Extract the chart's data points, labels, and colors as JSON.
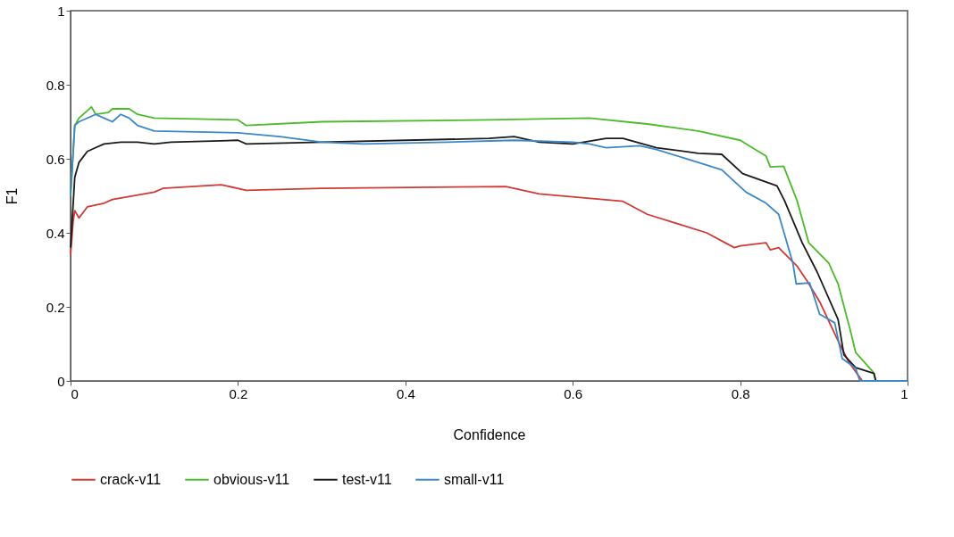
{
  "chart_data": {
    "type": "line",
    "xlabel": "Confidence",
    "ylabel": "F1",
    "xlim": [
      0,
      1
    ],
    "ylim": [
      0,
      1
    ],
    "xticks": [
      0,
      0.2,
      0.4,
      0.6,
      0.8,
      1
    ],
    "yticks": [
      0,
      0.2,
      0.4,
      0.6,
      0.8,
      1
    ],
    "grid": false,
    "legend": "bottom",
    "marker": "none",
    "line_style": "solid",
    "series": [
      {
        "name": "crack-v11",
        "color": "#d03a34",
        "x": [
          0,
          0.003,
          0.005,
          0.01,
          0.015,
          0.02,
          0.04,
          0.05,
          0.1,
          0.11,
          0.18,
          0.21,
          0.3,
          0.52,
          0.56,
          0.66,
          0.689,
          0.76,
          0.793,
          0.8,
          0.831,
          0.836,
          0.846,
          0.868,
          0.88,
          0.895,
          0.917,
          0.93,
          0.946,
          1
        ],
        "values": [
          0.34,
          0.43,
          0.46,
          0.44,
          0.455,
          0.47,
          0.48,
          0.49,
          0.51,
          0.52,
          0.53,
          0.515,
          0.52,
          0.525,
          0.505,
          0.485,
          0.45,
          0.4,
          0.36,
          0.365,
          0.373,
          0.354,
          0.36,
          0.31,
          0.27,
          0.214,
          0.108,
          0.05,
          0,
          0
        ]
      },
      {
        "name": "obvious-v11",
        "color": "#4cbb2b",
        "x": [
          0,
          0.005,
          0.01,
          0.02,
          0.025,
          0.03,
          0.045,
          0.05,
          0.07,
          0.08,
          0.1,
          0.2,
          0.21,
          0.3,
          0.5,
          0.62,
          0.689,
          0.75,
          0.8,
          0.831,
          0.836,
          0.852,
          0.868,
          0.882,
          0.906,
          0.917,
          0.932,
          0.938,
          0.959,
          0.962,
          1
        ],
        "values": [
          0.5,
          0.69,
          0.71,
          0.73,
          0.74,
          0.72,
          0.725,
          0.735,
          0.735,
          0.72,
          0.71,
          0.705,
          0.69,
          0.7,
          0.705,
          0.71,
          0.694,
          0.675,
          0.65,
          0.607,
          0.578,
          0.58,
          0.487,
          0.373,
          0.318,
          0.262,
          0.133,
          0.077,
          0.024,
          0,
          0
        ]
      },
      {
        "name": "test-v11",
        "color": "#1a1a1a",
        "x": [
          0,
          0.005,
          0.01,
          0.02,
          0.03,
          0.04,
          0.06,
          0.08,
          0.1,
          0.12,
          0.2,
          0.21,
          0.3,
          0.5,
          0.53,
          0.56,
          0.6,
          0.64,
          0.66,
          0.7,
          0.75,
          0.778,
          0.803,
          0.844,
          0.853,
          0.874,
          0.892,
          0.917,
          0.924,
          0.938,
          0.96,
          0.962,
          1
        ],
        "values": [
          0.36,
          0.55,
          0.59,
          0.62,
          0.63,
          0.64,
          0.645,
          0.645,
          0.64,
          0.645,
          0.65,
          0.64,
          0.645,
          0.655,
          0.66,
          0.645,
          0.64,
          0.655,
          0.655,
          0.63,
          0.615,
          0.612,
          0.56,
          0.527,
          0.487,
          0.374,
          0.294,
          0.166,
          0.07,
          0.036,
          0.02,
          0,
          0
        ]
      },
      {
        "name": "small-v11",
        "color": "#3b87c8",
        "x": [
          0,
          0.005,
          0.01,
          0.03,
          0.04,
          0.05,
          0.06,
          0.07,
          0.075,
          0.08,
          0.1,
          0.2,
          0.25,
          0.3,
          0.35,
          0.45,
          0.53,
          0.6,
          0.62,
          0.64,
          0.68,
          0.7,
          0.75,
          0.778,
          0.807,
          0.831,
          0.846,
          0.863,
          0.867,
          0.883,
          0.895,
          0.913,
          0.922,
          0.938,
          0.943,
          1
        ],
        "values": [
          0.5,
          0.69,
          0.7,
          0.72,
          0.71,
          0.7,
          0.72,
          0.71,
          0.7,
          0.69,
          0.675,
          0.67,
          0.66,
          0.645,
          0.64,
          0.645,
          0.65,
          0.645,
          0.64,
          0.63,
          0.635,
          0.625,
          0.59,
          0.57,
          0.51,
          0.48,
          0.45,
          0.318,
          0.262,
          0.265,
          0.18,
          0.157,
          0.06,
          0.034,
          0,
          0
        ]
      }
    ]
  }
}
